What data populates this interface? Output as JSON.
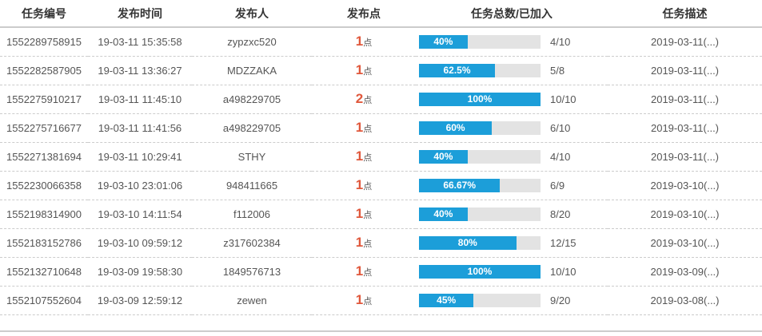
{
  "colors": {
    "bar_fill": "#1C9ED9",
    "bar_track": "#E3E3E3",
    "bar_text": "#FFFFFF",
    "point_number": "#E0583C",
    "header_text": "#333333",
    "cell_text": "#555555",
    "divider": "#CCCCCC"
  },
  "table": {
    "headers": [
      "任务编号",
      "发布时间",
      "发布人",
      "发布点",
      "任务总数/已加入",
      "任务描述"
    ],
    "rows": [
      {
        "task_id": "1552289758915",
        "publish_time": "19-03-11 15:35:58",
        "publisher": "zypzxc520",
        "points": "1",
        "points_unit": "点",
        "percent_label": "40%",
        "percent_value": 40,
        "fraction": "4/10",
        "description": "2019-03-11(...)"
      },
      {
        "task_id": "1552282587905",
        "publish_time": "19-03-11 13:36:27",
        "publisher": "MDZZAKA",
        "points": "1",
        "points_unit": "点",
        "percent_label": "62.5%",
        "percent_value": 62.5,
        "fraction": "5/8",
        "description": "2019-03-11(...)"
      },
      {
        "task_id": "1552275910217",
        "publish_time": "19-03-11 11:45:10",
        "publisher": "a498229705",
        "points": "2",
        "points_unit": "点",
        "percent_label": "100%",
        "percent_value": 100,
        "fraction": "10/10",
        "description": "2019-03-11(...)"
      },
      {
        "task_id": "1552275716677",
        "publish_time": "19-03-11 11:41:56",
        "publisher": "a498229705",
        "points": "1",
        "points_unit": "点",
        "percent_label": "60%",
        "percent_value": 60,
        "fraction": "6/10",
        "description": "2019-03-11(...)"
      },
      {
        "task_id": "1552271381694",
        "publish_time": "19-03-11 10:29:41",
        "publisher": "STHY",
        "points": "1",
        "points_unit": "点",
        "percent_label": "40%",
        "percent_value": 40,
        "fraction": "4/10",
        "description": "2019-03-11(...)"
      },
      {
        "task_id": "1552230066358",
        "publish_time": "19-03-10 23:01:06",
        "publisher": "948411665",
        "points": "1",
        "points_unit": "点",
        "percent_label": "66.67%",
        "percent_value": 66.67,
        "fraction": "6/9",
        "description": "2019-03-10(...)"
      },
      {
        "task_id": "1552198314900",
        "publish_time": "19-03-10 14:11:54",
        "publisher": "f112006",
        "points": "1",
        "points_unit": "点",
        "percent_label": "40%",
        "percent_value": 40,
        "fraction": "8/20",
        "description": "2019-03-10(...)"
      },
      {
        "task_id": "1552183152786",
        "publish_time": "19-03-10 09:59:12",
        "publisher": "z317602384",
        "points": "1",
        "points_unit": "点",
        "percent_label": "80%",
        "percent_value": 80,
        "fraction": "12/15",
        "description": "2019-03-10(...)"
      },
      {
        "task_id": "1552132710648",
        "publish_time": "19-03-09 19:58:30",
        "publisher": "1849576713",
        "points": "1",
        "points_unit": "点",
        "percent_label": "100%",
        "percent_value": 100,
        "fraction": "10/10",
        "description": "2019-03-09(...)"
      },
      {
        "task_id": "1552107552604",
        "publish_time": "19-03-09 12:59:12",
        "publisher": "zewen",
        "points": "1",
        "points_unit": "点",
        "percent_label": "45%",
        "percent_value": 45,
        "fraction": "9/20",
        "description": "2019-03-08(...)"
      }
    ]
  }
}
